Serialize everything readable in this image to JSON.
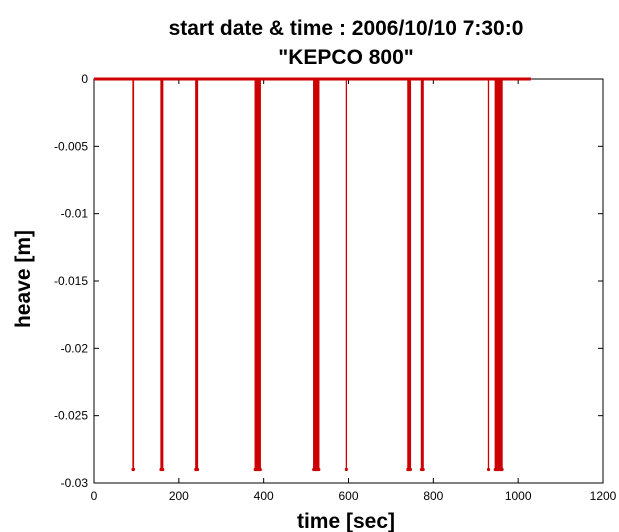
{
  "chart_data": {
    "type": "line",
    "title": "start date & time : 2006/10/10  7:30:0",
    "subtitle": "\"KEPCO 800\"",
    "xlabel": "time [sec]",
    "ylabel": "heave [m]",
    "xlim": [
      0,
      1200
    ],
    "ylim": [
      -0.03,
      0
    ],
    "xticks": [
      0,
      200,
      400,
      600,
      800,
      1000,
      1200
    ],
    "xtick_labels": [
      "0",
      "200",
      "400",
      "600",
      "800",
      "1000",
      "1200"
    ],
    "yticks": [
      0,
      -0.005,
      -0.01,
      -0.015,
      -0.02,
      -0.025,
      -0.03
    ],
    "ytick_labels": [
      "0",
      "-0.005",
      "-0.01",
      "-0.015",
      "-0.02",
      "-0.025",
      "-0.03"
    ],
    "grid": false,
    "series": [
      {
        "color": "#cc0000",
        "x_range": [
          0,
          1030
        ],
        "baseline": 0,
        "spikes": [
          {
            "x": 92,
            "min": -0.029
          },
          {
            "x": 93,
            "min": -0.029
          },
          {
            "x": 158,
            "min": -0.029
          },
          {
            "x": 160,
            "min": -0.029
          },
          {
            "x": 162,
            "min": -0.029
          },
          {
            "x": 240,
            "min": -0.029
          },
          {
            "x": 242,
            "min": -0.029
          },
          {
            "x": 244,
            "min": -0.029
          },
          {
            "x": 380,
            "min": -0.029
          },
          {
            "x": 382,
            "min": -0.029
          },
          {
            "x": 384,
            "min": -0.029
          },
          {
            "x": 386,
            "min": -0.029
          },
          {
            "x": 388,
            "min": -0.029
          },
          {
            "x": 390,
            "min": -0.029
          },
          {
            "x": 392,
            "min": -0.029
          },
          {
            "x": 518,
            "min": -0.029
          },
          {
            "x": 520,
            "min": -0.029
          },
          {
            "x": 522,
            "min": -0.029
          },
          {
            "x": 524,
            "min": -0.029
          },
          {
            "x": 526,
            "min": -0.029
          },
          {
            "x": 528,
            "min": -0.029
          },
          {
            "x": 530,
            "min": -0.029
          },
          {
            "x": 595,
            "min": -0.029
          },
          {
            "x": 740,
            "min": -0.029
          },
          {
            "x": 742,
            "min": -0.029
          },
          {
            "x": 744,
            "min": -0.029
          },
          {
            "x": 746,
            "min": -0.029
          },
          {
            "x": 772,
            "min": -0.029
          },
          {
            "x": 774,
            "min": -0.029
          },
          {
            "x": 776,
            "min": -0.029
          },
          {
            "x": 930,
            "min": -0.029
          },
          {
            "x": 946,
            "min": -0.029
          },
          {
            "x": 948,
            "min": -0.029
          },
          {
            "x": 950,
            "min": -0.029
          },
          {
            "x": 952,
            "min": -0.029
          },
          {
            "x": 954,
            "min": -0.029
          },
          {
            "x": 956,
            "min": -0.029
          },
          {
            "x": 958,
            "min": -0.029
          },
          {
            "x": 960,
            "min": -0.029
          },
          {
            "x": 962,
            "min": -0.029
          }
        ]
      }
    ]
  }
}
